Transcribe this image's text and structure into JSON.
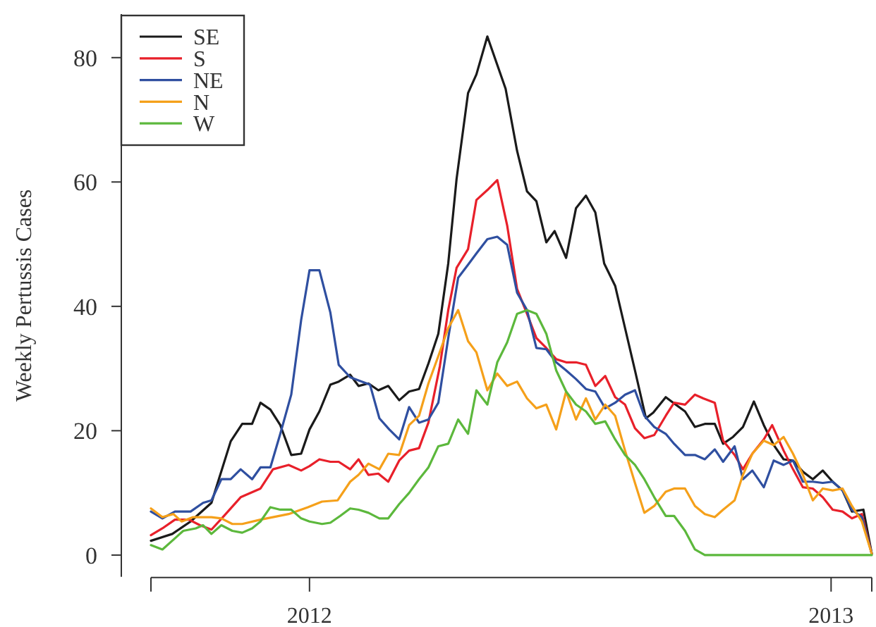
{
  "chart_data": {
    "type": "line",
    "ylabel": "Weekly Pertussis Cases",
    "xlim": [
      2011.696,
      2013.078
    ],
    "xticks": [
      {
        "value": 2011.696,
        "label": null
      },
      2012,
      2013,
      {
        "value": 2013.078,
        "label": null
      }
    ],
    "ylim": [
      -3.5,
      87
    ],
    "yticks": [
      0,
      20,
      40,
      60,
      80
    ],
    "grid": false,
    "legend": "top left",
    "marker": "none",
    "line_style": "solid",
    "series": [
      {
        "name": "SE",
        "color": "#1a1a1a",
        "x": [
          2011.696,
          2011.737,
          2011.772,
          2011.812,
          2011.849,
          2011.871,
          2011.89,
          2011.906,
          2011.925,
          2011.944,
          2011.965,
          2011.984,
          2012.0,
          2012.019,
          2012.04,
          2012.056,
          2012.078,
          2012.094,
          2012.113,
          2012.132,
          2012.151,
          2012.172,
          2012.191,
          2012.21,
          2012.228,
          2012.247,
          2012.266,
          2012.282,
          2012.304,
          2012.32,
          2012.341,
          2012.376,
          2012.398,
          2012.417,
          2012.435,
          2012.454,
          2012.47,
          2012.492,
          2012.511,
          2012.53,
          2012.548,
          2012.565,
          2012.586,
          2012.605,
          2012.624,
          2012.645,
          2012.659,
          2012.683,
          2012.702,
          2012.72,
          2012.739,
          2012.758,
          2012.777,
          2012.793,
          2012.812,
          2012.831,
          2012.852,
          2012.871,
          2012.89,
          2012.909,
          2012.927,
          2012.946,
          2012.965,
          2012.984,
          2013.003,
          2013.022,
          2013.04,
          2013.062,
          2013.078
        ],
        "values": [
          2.3,
          3.4,
          5.4,
          8.4,
          18.3,
          21.1,
          21.1,
          24.5,
          23.4,
          20.9,
          16.1,
          16.3,
          20.2,
          23.1,
          27.4,
          27.9,
          29.0,
          27.2,
          27.6,
          26.5,
          27.2,
          24.9,
          26.3,
          26.7,
          30.8,
          35.6,
          46.9,
          60.5,
          74.3,
          77.3,
          83.4,
          75.0,
          65.0,
          58.5,
          56.9,
          50.3,
          52.1,
          47.8,
          55.8,
          57.8,
          55.1,
          46.9,
          43.3,
          36.5,
          29.7,
          22.0,
          22.9,
          25.4,
          24.2,
          23.1,
          20.6,
          21.1,
          21.1,
          17.9,
          19.0,
          20.6,
          24.7,
          20.9,
          17.7,
          15.4,
          15.2,
          13.4,
          12.2,
          13.6,
          11.8,
          10.4,
          7.0,
          7.3,
          0.2
        ]
      },
      {
        "name": "S",
        "color": "#e8202a",
        "x": [
          2011.696,
          2011.718,
          2011.742,
          2011.769,
          2011.79,
          2011.812,
          2011.836,
          2011.868,
          2011.906,
          2011.93,
          2011.96,
          2011.984,
          2012.0,
          2012.019,
          2012.04,
          2012.056,
          2012.078,
          2012.094,
          2012.113,
          2012.132,
          2012.151,
          2012.172,
          2012.191,
          2012.21,
          2012.228,
          2012.25,
          2012.266,
          2012.282,
          2012.304,
          2012.32,
          2012.341,
          2012.36,
          2012.379,
          2012.398,
          2012.417,
          2012.435,
          2012.454,
          2012.473,
          2012.492,
          2012.511,
          2012.53,
          2012.548,
          2012.567,
          2012.586,
          2012.605,
          2012.624,
          2012.642,
          2012.661,
          2012.683,
          2012.699,
          2012.72,
          2012.739,
          2012.755,
          2012.777,
          2012.793,
          2012.815,
          2012.831,
          2012.849,
          2012.871,
          2012.887,
          2012.909,
          2012.927,
          2012.946,
          2012.965,
          2012.984,
          2013.003,
          2013.022,
          2013.04,
          2013.059,
          2013.078
        ],
        "values": [
          3.2,
          4.3,
          5.7,
          5.7,
          4.8,
          4.1,
          6.3,
          9.3,
          10.7,
          13.8,
          14.5,
          13.6,
          14.3,
          15.4,
          15.0,
          15.0,
          13.8,
          15.4,
          12.9,
          13.1,
          11.8,
          15.2,
          16.8,
          17.2,
          21.3,
          30.4,
          39.4,
          46.2,
          49.2,
          57.1,
          58.7,
          60.3,
          53.0,
          42.8,
          38.8,
          34.9,
          33.3,
          31.5,
          31.0,
          31.0,
          30.6,
          27.2,
          28.8,
          25.4,
          24.2,
          20.4,
          18.8,
          19.3,
          22.4,
          24.5,
          24.2,
          25.8,
          25.2,
          24.5,
          18.4,
          16.1,
          13.8,
          16.3,
          18.6,
          20.9,
          16.8,
          13.8,
          10.9,
          10.7,
          9.3,
          7.3,
          7.0,
          5.9,
          6.6,
          0.2
        ]
      },
      {
        "name": "NE",
        "color": "#2f4fa0",
        "x": [
          2011.696,
          2011.718,
          2011.742,
          2011.772,
          2011.796,
          2011.812,
          2011.831,
          2011.849,
          2011.868,
          2011.89,
          2011.906,
          2011.925,
          2011.944,
          2011.965,
          2011.984,
          2012.0,
          2012.019,
          2012.04,
          2012.056,
          2012.078,
          2012.094,
          2012.116,
          2012.134,
          2012.153,
          2012.172,
          2012.191,
          2012.21,
          2012.228,
          2012.247,
          2012.266,
          2012.285,
          2012.304,
          2012.32,
          2012.341,
          2012.36,
          2012.379,
          2012.398,
          2012.417,
          2012.435,
          2012.454,
          2012.473,
          2012.492,
          2012.511,
          2012.53,
          2012.548,
          2012.567,
          2012.586,
          2012.605,
          2012.624,
          2012.642,
          2012.661,
          2012.683,
          2012.699,
          2012.72,
          2012.739,
          2012.758,
          2012.777,
          2012.793,
          2012.815,
          2012.831,
          2012.849,
          2012.871,
          2012.89,
          2012.909,
          2012.927,
          2012.946,
          2012.965,
          2012.984,
          2013.003,
          2013.022,
          2013.04,
          2013.059,
          2013.078
        ],
        "values": [
          7.0,
          5.9,
          7.0,
          7.0,
          8.4,
          8.8,
          12.2,
          12.2,
          13.8,
          12.2,
          14.1,
          14.1,
          19.5,
          25.8,
          37.8,
          45.8,
          45.8,
          39.0,
          30.6,
          28.6,
          28.1,
          27.4,
          22.0,
          20.2,
          18.6,
          23.8,
          21.3,
          21.8,
          24.5,
          34.9,
          44.6,
          46.7,
          48.5,
          50.8,
          51.2,
          49.9,
          42.2,
          39.4,
          33.3,
          33.1,
          31.0,
          29.7,
          28.3,
          26.7,
          26.3,
          23.6,
          24.5,
          25.8,
          26.5,
          22.4,
          20.6,
          19.5,
          17.9,
          16.1,
          16.1,
          15.4,
          17.0,
          15.0,
          17.5,
          12.2,
          13.6,
          10.9,
          15.2,
          14.5,
          15.2,
          11.8,
          11.8,
          11.6,
          11.8,
          10.4,
          7.3,
          6.1,
          0.2
        ]
      },
      {
        "name": "N",
        "color": "#f5a01a",
        "x": [
          2011.696,
          2011.718,
          2011.739,
          2011.755,
          2011.777,
          2011.812,
          2011.831,
          2011.852,
          2011.871,
          2011.906,
          2011.96,
          2011.997,
          2012.024,
          2012.054,
          2012.078,
          2012.094,
          2012.113,
          2012.134,
          2012.151,
          2012.172,
          2012.191,
          2012.21,
          2012.228,
          2012.247,
          2012.266,
          2012.285,
          2012.304,
          2012.32,
          2012.341,
          2012.36,
          2012.379,
          2012.398,
          2012.417,
          2012.435,
          2012.454,
          2012.473,
          2012.492,
          2012.511,
          2012.53,
          2012.548,
          2012.567,
          2012.586,
          2012.605,
          2012.624,
          2012.642,
          2012.661,
          2012.683,
          2012.699,
          2012.72,
          2012.739,
          2012.758,
          2012.777,
          2012.793,
          2012.815,
          2012.831,
          2012.849,
          2012.871,
          2012.89,
          2012.909,
          2012.927,
          2012.946,
          2012.965,
          2012.984,
          2013.003,
          2013.022,
          2013.04,
          2013.059,
          2013.078
        ],
        "values": [
          7.5,
          6.1,
          6.6,
          5.4,
          6.1,
          6.1,
          5.9,
          5.0,
          5.0,
          5.7,
          6.6,
          7.7,
          8.6,
          8.8,
          11.8,
          12.9,
          14.7,
          13.8,
          16.3,
          16.1,
          20.9,
          22.4,
          27.6,
          32.0,
          36.5,
          39.4,
          34.4,
          32.6,
          26.5,
          29.2,
          27.2,
          27.9,
          25.2,
          23.6,
          24.2,
          20.2,
          26.3,
          21.8,
          25.2,
          21.8,
          24.2,
          22.4,
          16.8,
          11.6,
          6.8,
          7.9,
          10.2,
          10.7,
          10.7,
          7.9,
          6.6,
          6.1,
          7.3,
          8.8,
          12.9,
          16.3,
          18.4,
          17.7,
          19.0,
          16.3,
          12.9,
          8.8,
          10.7,
          10.4,
          10.7,
          7.9,
          5.4,
          0.2
        ]
      },
      {
        "name": "W",
        "color": "#5cb83c",
        "x": [
          2011.696,
          2011.718,
          2011.742,
          2011.758,
          2011.782,
          2011.796,
          2011.812,
          2011.831,
          2011.852,
          2011.871,
          2011.89,
          2011.906,
          2011.925,
          2011.944,
          2011.965,
          2011.984,
          2012.0,
          2012.024,
          2012.04,
          2012.059,
          2012.078,
          2012.094,
          2012.113,
          2012.134,
          2012.151,
          2012.172,
          2012.191,
          2012.21,
          2012.228,
          2012.247,
          2012.266,
          2012.285,
          2012.304,
          2012.32,
          2012.341,
          2012.36,
          2012.379,
          2012.398,
          2012.417,
          2012.435,
          2012.454,
          2012.473,
          2012.492,
          2012.511,
          2012.53,
          2012.548,
          2012.567,
          2012.586,
          2012.605,
          2012.624,
          2012.642,
          2012.661,
          2012.683,
          2012.699,
          2012.72,
          2012.739,
          2012.758,
          2013.078
        ],
        "values": [
          1.6,
          0.9,
          2.7,
          3.9,
          4.3,
          4.8,
          3.4,
          4.8,
          3.9,
          3.6,
          4.3,
          5.4,
          7.7,
          7.3,
          7.3,
          5.9,
          5.4,
          5.0,
          5.2,
          6.3,
          7.5,
          7.3,
          6.8,
          5.9,
          5.9,
          8.2,
          10.0,
          12.2,
          14.1,
          17.5,
          17.9,
          21.8,
          19.5,
          26.5,
          24.2,
          31.0,
          34.2,
          38.8,
          39.4,
          38.8,
          35.6,
          29.7,
          26.3,
          24.2,
          23.1,
          21.1,
          21.5,
          18.6,
          16.1,
          14.5,
          12.2,
          9.3,
          6.3,
          6.3,
          3.9,
          0.9,
          0,
          0
        ]
      }
    ]
  }
}
